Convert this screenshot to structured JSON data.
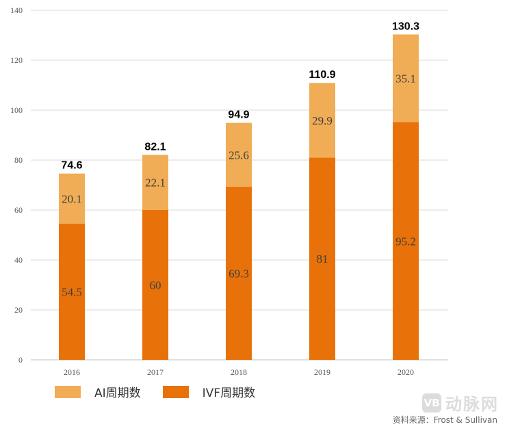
{
  "chart_data": {
    "type": "bar",
    "stacked": true,
    "categories": [
      "2016",
      "2017",
      "2018",
      "2019",
      "2020"
    ],
    "series": [
      {
        "name": "IVF周期数",
        "color": "#E8710A",
        "values": [
          54.5,
          60,
          69.3,
          81,
          95.2
        ],
        "labels": [
          "54.5",
          "60",
          "69.3",
          "81",
          "95.2"
        ]
      },
      {
        "name": "AI周期数",
        "color": "#F0AD55",
        "values": [
          20.1,
          22.1,
          25.6,
          29.9,
          35.1
        ],
        "labels": [
          "20.1",
          "22.1",
          "25.6",
          "29.9",
          "35.1"
        ]
      }
    ],
    "totals": [
      "74.6",
      "82.1",
      "94.9",
      "110.9",
      "130.3"
    ],
    "ylim": [
      0,
      140
    ],
    "yticks": [
      "0",
      "20",
      "40",
      "60",
      "80",
      "100",
      "120",
      "140"
    ],
    "grid": true,
    "legend_position": "bottom-left"
  },
  "legend": [
    {
      "label": "AI周期数",
      "color": "#F0AD55"
    },
    {
      "label": "IVF周期数",
      "color": "#E8710A"
    }
  ],
  "source": "资料来源：Frost & Sullivan",
  "watermark": {
    "logo": "VB",
    "text": "动脉网"
  }
}
